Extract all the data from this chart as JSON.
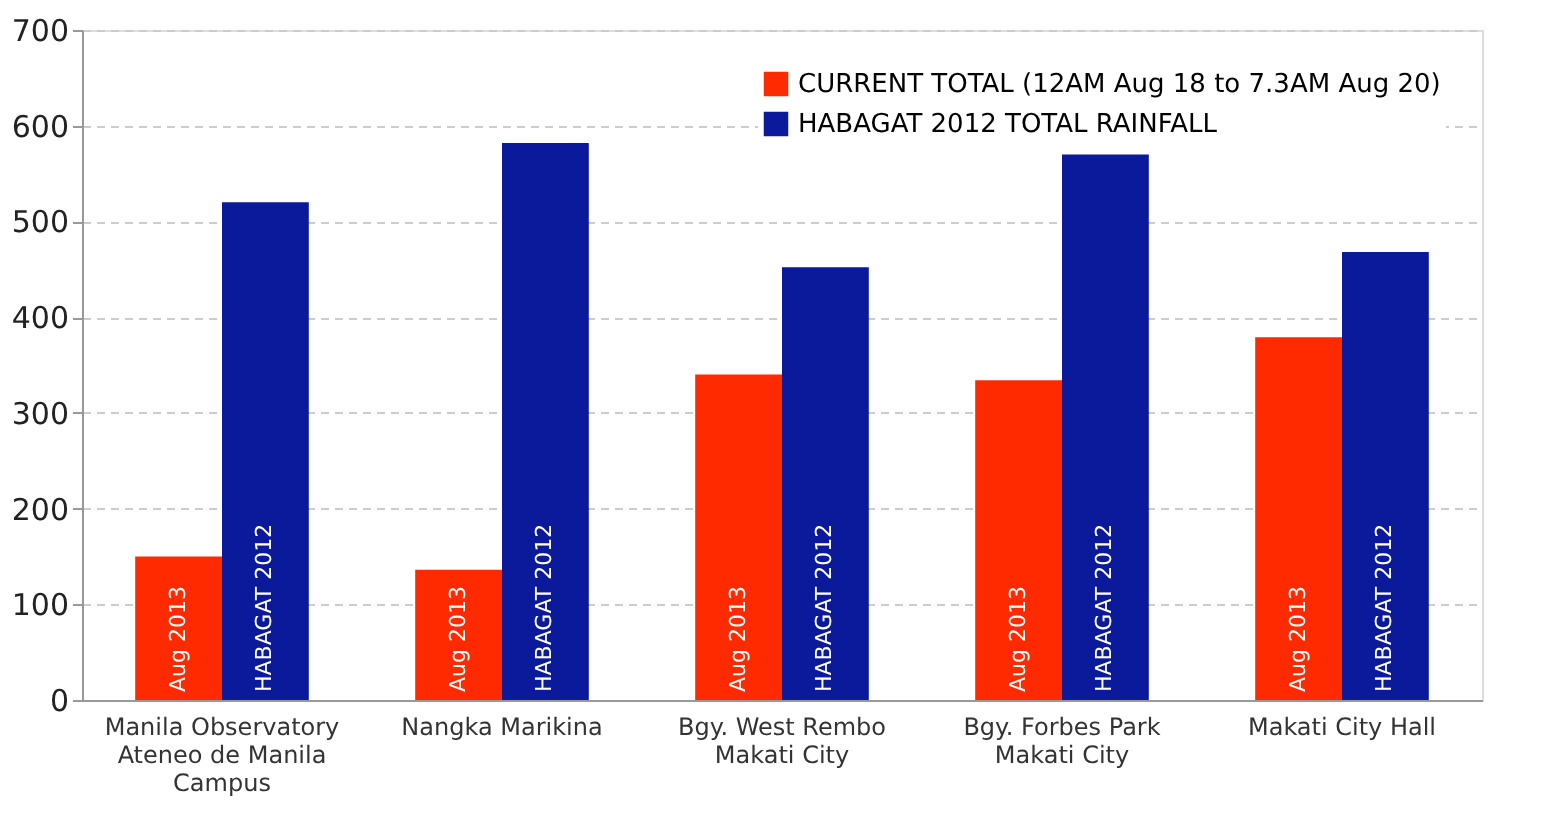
{
  "chart_data": {
    "type": "bar",
    "categories": [
      "Manila Observatory\nAteneo de Manila\nCampus",
      "Nangka Marikina",
      "Bgy. West Rembo\nMakati City",
      "Bgy. Forbes Park\nMakati City",
      "Makati City Hall"
    ],
    "series": [
      {
        "name": "CURRENT TOTAL (12AM Aug 18 to 7.3AM Aug 20)",
        "color": "#ff2a00",
        "values": [
          150,
          136,
          340,
          334,
          379
        ],
        "value_labels": [
          "Aug 2013",
          "Aug 2013",
          "Aug 2013",
          "Aug 2013",
          "Aug 2013"
        ]
      },
      {
        "name": "HABAGAT 2012 TOTAL RAINFALL",
        "color": "#0a1a9a",
        "values": [
          520,
          582,
          452,
          570,
          468
        ],
        "value_labels": [
          "HABAGAT 2012",
          "HABAGAT 2012",
          "HABAGAT 2012",
          "HABAGAT 2012",
          "HABAGAT 2012"
        ]
      }
    ],
    "ylim": [
      0,
      700
    ],
    "yticks": [
      0,
      100,
      200,
      300,
      400,
      500,
      600,
      700
    ],
    "grid": "y",
    "legend": "top right"
  }
}
